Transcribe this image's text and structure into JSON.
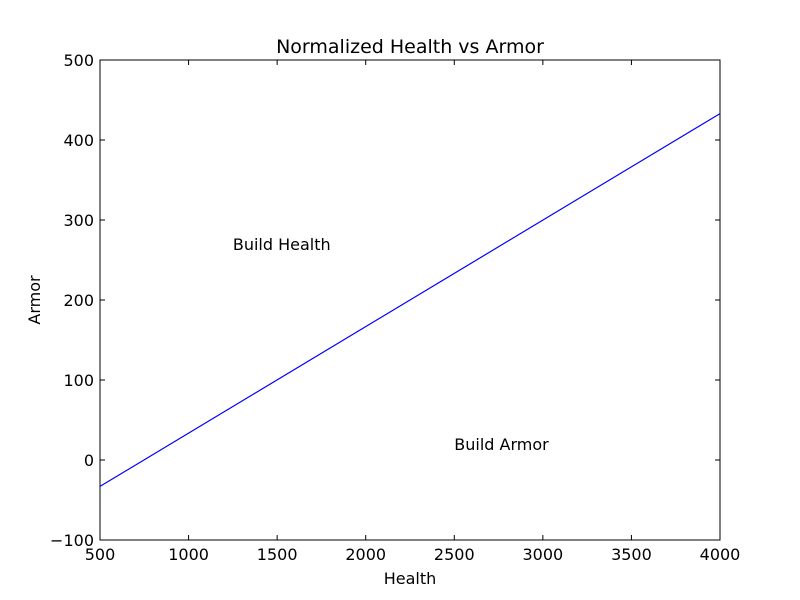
{
  "chart_data": {
    "type": "line",
    "title": "Normalized Health vs Armor",
    "xlabel": "Health",
    "ylabel": "Armor",
    "xlim": [
      500,
      4000
    ],
    "ylim": [
      -100,
      500
    ],
    "grid": false,
    "xticks": [
      500,
      1000,
      1500,
      2000,
      2500,
      3000,
      3500,
      4000
    ],
    "yticks": [
      -100,
      0,
      100,
      200,
      300,
      400,
      500
    ],
    "xtick_labels": [
      "500",
      "1000",
      "1500",
      "2000",
      "2500",
      "3000",
      "3500",
      "4000"
    ],
    "ytick_labels": [
      "−100",
      "0",
      "100",
      "200",
      "300",
      "400",
      "500"
    ],
    "series": [
      {
        "color": "#0000ff",
        "x": [
          500,
          4000
        ],
        "y": [
          -33,
          433
        ]
      }
    ],
    "annotations": [
      {
        "text": "Build Health",
        "x": 1250,
        "y": 270
      },
      {
        "text": "Build Armor",
        "x": 2500,
        "y": 20
      }
    ]
  }
}
